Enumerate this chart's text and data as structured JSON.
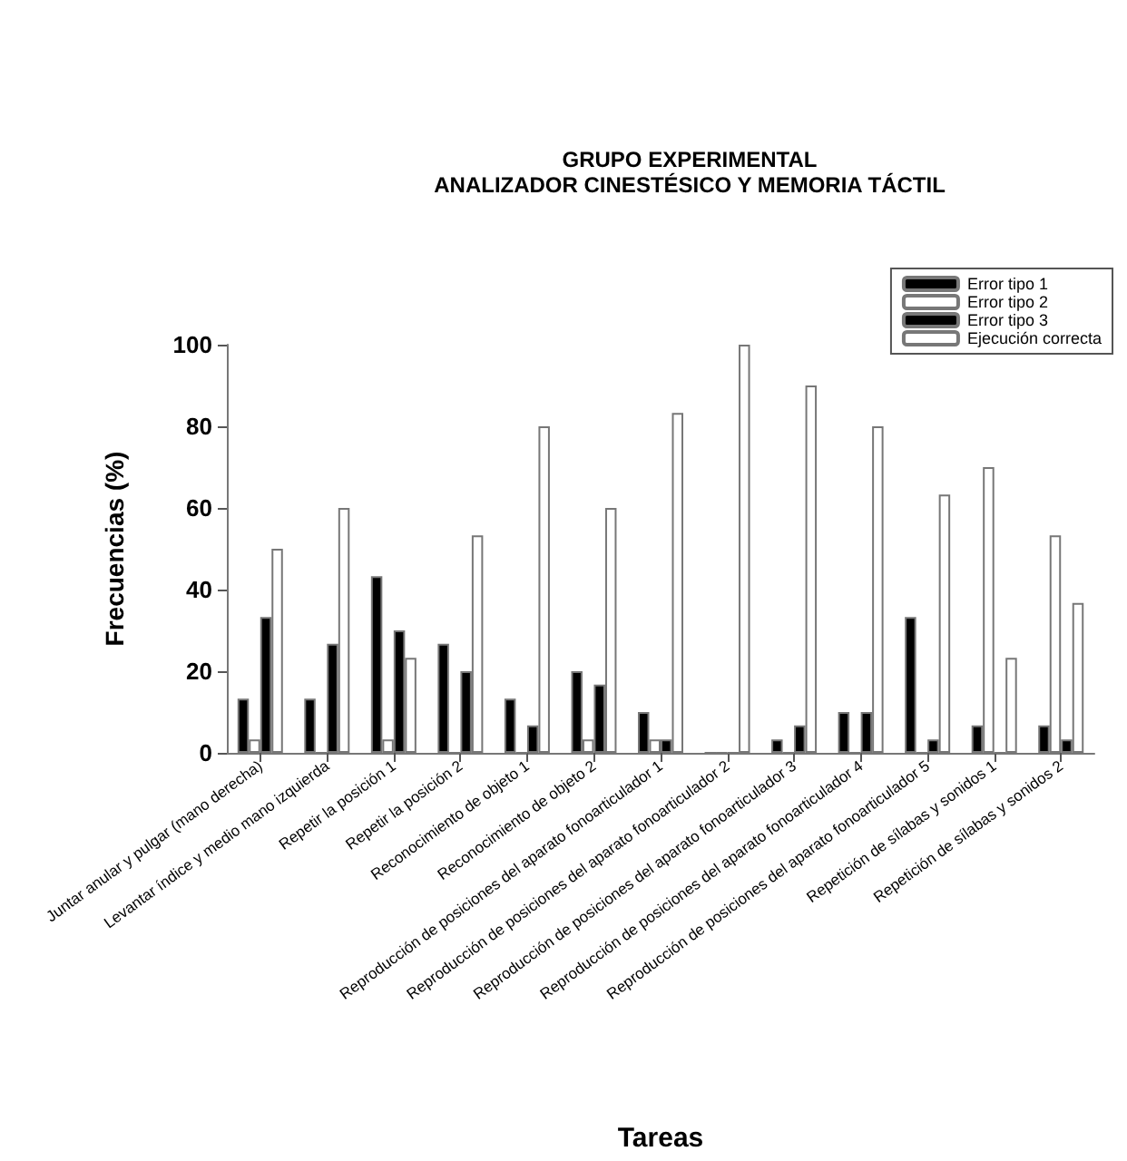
{
  "chart_data": {
    "type": "bar",
    "title": "GRUPO EXPERIMENTAL\nANALIZADOR CINESTÉSICO Y MEMORIA TÁCTIL",
    "xlabel": "Tareas",
    "ylabel": "Frecuencias (%)",
    "categories": [
      "Juntar anular y pulgar (mano derecha)",
      "Levantar índice y medio mano izquierda",
      "Repetir la posición 1",
      "Repetir la posición 2",
      "Reconocimiento de objeto 1",
      "Reconocimiento de objeto 2",
      "Reproducción de posiciones del aparato fonoarticulador 1",
      "Reproducción de posiciones del aparato fonoarticulador 2",
      "Reproducción de posiciones del aparato fonoarticulador 3",
      "Reproducción de posiciones del aparato fonoarticulador 4",
      "Reproducción de posiciones del aparato fonoarticulador 5",
      "Repetición de sílabas y sonidos 1",
      "Repetición de sílabas y sonidos 2"
    ],
    "series": [
      {
        "name": "Error tipo 1",
        "color": "#000000",
        "values": [
          13.3,
          13.3,
          43.3,
          26.7,
          13.3,
          20,
          10,
          0,
          3.3,
          10,
          33.3,
          6.7,
          6.7
        ]
      },
      {
        "name": "Error tipo 2",
        "color": "#ffffff",
        "values": [
          3.3,
          0,
          3.3,
          0,
          0,
          3.3,
          3.3,
          0,
          0,
          0,
          0,
          70,
          53.3
        ]
      },
      {
        "name": "Error tipo 3",
        "color": "#000000",
        "values": [
          33.3,
          26.7,
          30,
          20,
          6.7,
          16.7,
          3.3,
          0,
          6.7,
          10,
          3.3,
          0,
          3.3
        ]
      },
      {
        "name": "Ejecución correcta",
        "color": "#ffffff",
        "values": [
          50,
          60,
          23.3,
          53.3,
          80,
          60,
          83.3,
          100,
          90,
          80,
          63.3,
          23.3,
          36.7
        ]
      }
    ],
    "ylim": [
      0,
      100
    ],
    "yticks": [
      0,
      20,
      40,
      60,
      80,
      100
    ],
    "grid": false,
    "legend": "top right"
  }
}
